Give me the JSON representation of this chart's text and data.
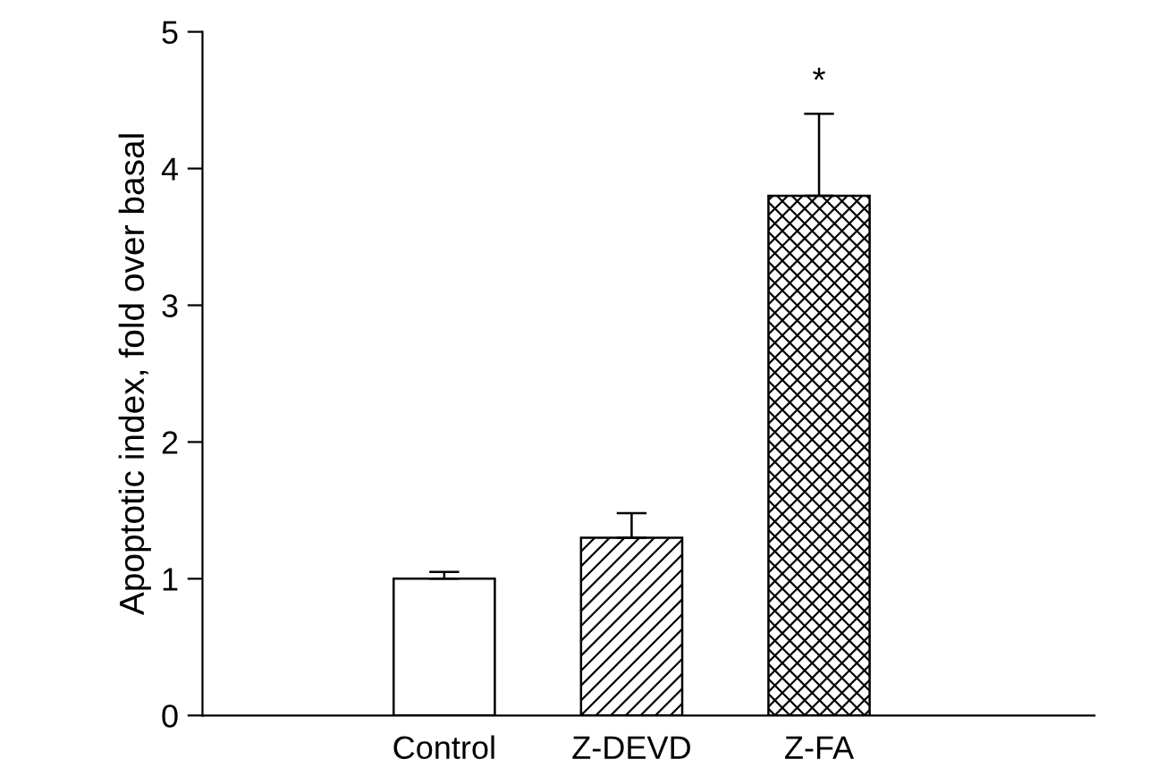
{
  "chart_data": {
    "type": "bar",
    "categories": [
      "Control",
      "Z-DEVD",
      "Z-FA"
    ],
    "values": [
      1.0,
      1.3,
      3.8
    ],
    "errors": [
      [
        1.0,
        1.05
      ],
      [
        1.3,
        1.48
      ],
      [
        3.8,
        4.4
      ]
    ],
    "ylabel": "Apoptotic index, fold over basal",
    "ylim": [
      0,
      5
    ],
    "yticks": [
      0,
      1,
      2,
      3,
      4,
      5
    ],
    "annotations": [
      "*"
    ],
    "grid": false,
    "legend": false
  }
}
